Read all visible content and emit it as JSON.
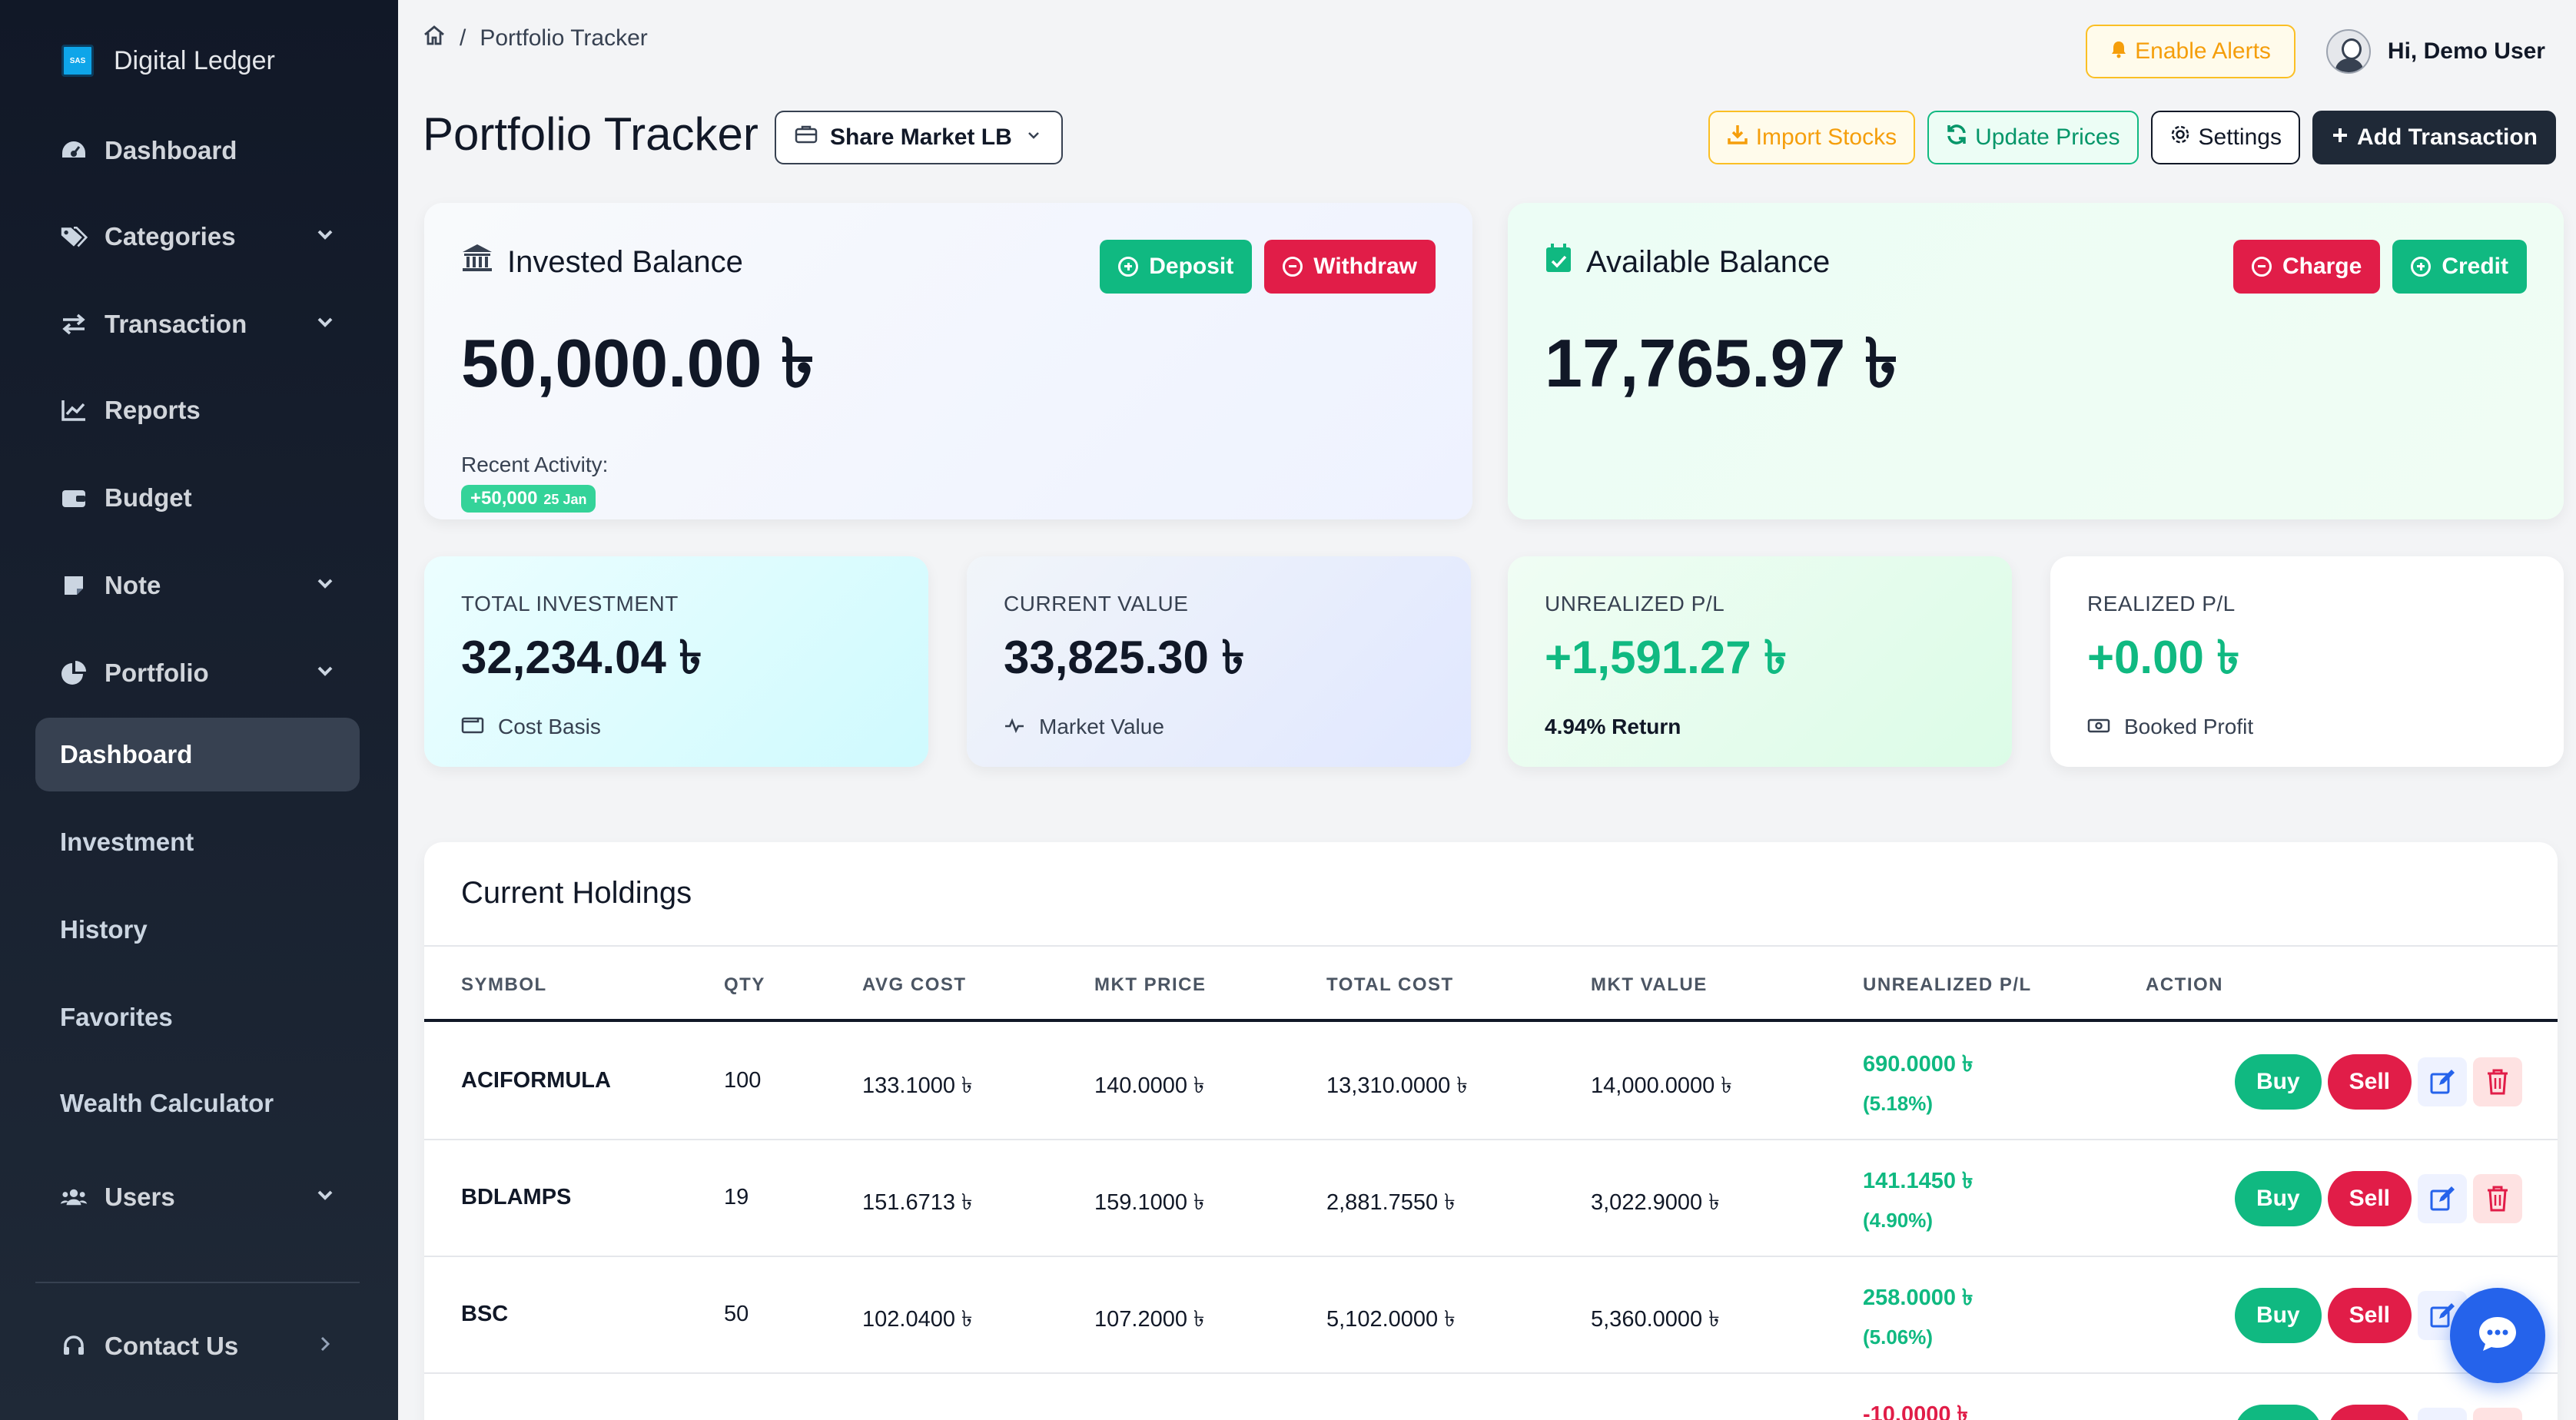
{
  "sidebar": {
    "brand": {
      "name": "Digital Ledger",
      "logo_text": "SAS"
    },
    "items": [
      {
        "label": "Dashboard",
        "icon": "dashboard-icon"
      },
      {
        "label": "Categories",
        "icon": "tags-icon"
      },
      {
        "label": "Transaction",
        "icon": "exchange-icon"
      },
      {
        "label": "Reports",
        "icon": "chart-line-icon"
      },
      {
        "label": "Budget",
        "icon": "wallet-icon"
      },
      {
        "label": "Note",
        "icon": "note-icon"
      },
      {
        "label": "Portfolio",
        "icon": "pie-chart-icon"
      }
    ],
    "portfolio_sub": [
      {
        "label": "Dashboard",
        "active": true
      },
      {
        "label": "Investment"
      },
      {
        "label": "History"
      },
      {
        "label": "Favorites"
      },
      {
        "label": "Wealth Calculator"
      }
    ],
    "users": {
      "label": "Users",
      "icon": "users-icon"
    },
    "contact": {
      "label": "Contact Us",
      "icon": "headset-icon"
    }
  },
  "breadcrumb": {
    "current": "Portfolio Tracker"
  },
  "topbar": {
    "alerts_label": "Enable Alerts",
    "greeting": "Hi, Demo User"
  },
  "page": {
    "title": "Portfolio Tracker",
    "market_select": "Share Market LB"
  },
  "actions": {
    "import": "Import Stocks",
    "update": "Update Prices",
    "settings": "Settings",
    "add": "Add Transaction"
  },
  "invested": {
    "title": "Invested Balance",
    "amount": "50,000.00 ৳",
    "deposit": "Deposit",
    "withdraw": "Withdraw",
    "recent_label": "Recent Activity:",
    "recent_amount": "+50,000",
    "recent_date": "25 Jan"
  },
  "available": {
    "title": "Available Balance",
    "amount": "17,765.97 ৳",
    "charge": "Charge",
    "credit": "Credit"
  },
  "stats": [
    {
      "label": "TOTAL INVESTMENT",
      "value": "32,234.04 ৳",
      "foot": "Cost Basis"
    },
    {
      "label": "CURRENT VALUE",
      "value": "33,825.30 ৳",
      "foot": "Market Value"
    },
    {
      "label": "UNREALIZED P/L",
      "value": "+1,591.27 ৳",
      "foot": "4.94% Return"
    },
    {
      "label": "REALIZED P/L",
      "value": "+0.00 ৳",
      "foot": "Booked Profit"
    }
  ],
  "holdings": {
    "title": "Current Holdings",
    "columns": [
      "SYMBOL",
      "QTY",
      "AVG COST",
      "MKT PRICE",
      "TOTAL COST",
      "MKT VALUE",
      "UNREALIZED P/L",
      "ACTION"
    ],
    "buy_label": "Buy",
    "sell_label": "Sell",
    "rows": [
      {
        "symbol": "ACIFORMULA",
        "qty": "100",
        "avg": "133.1000 ৳",
        "price": "140.0000 ৳",
        "total": "13,310.0000 ৳",
        "mkt": "14,000.0000 ৳",
        "pl": "690.0000 ৳",
        "pct": "(5.18%)"
      },
      {
        "symbol": "BDLAMPS",
        "qty": "19",
        "avg": "151.6713 ৳",
        "price": "159.1000 ৳",
        "total": "2,881.7550 ৳",
        "mkt": "3,022.9000 ৳",
        "pl": "141.1450 ৳",
        "pct": "(4.90%)"
      },
      {
        "symbol": "BSC",
        "qty": "50",
        "avg": "102.0400 ৳",
        "price": "107.2000 ৳",
        "total": "5,102.0000 ৳",
        "mkt": "5,360.0000 ৳",
        "pl": "258.0000 ৳",
        "pct": "(5.06%)"
      },
      {
        "symbol": "",
        "qty": "",
        "avg": "",
        "price": "",
        "total": "",
        "mkt": "",
        "pl": "-10.0000 ৳",
        "pct": ""
      }
    ]
  },
  "colors": {
    "sidebar_bg": "#111827",
    "accent_green": "#10b981",
    "accent_red": "#e11d48",
    "accent_amber": "#f59e0b",
    "fab_blue": "#2563eb"
  }
}
